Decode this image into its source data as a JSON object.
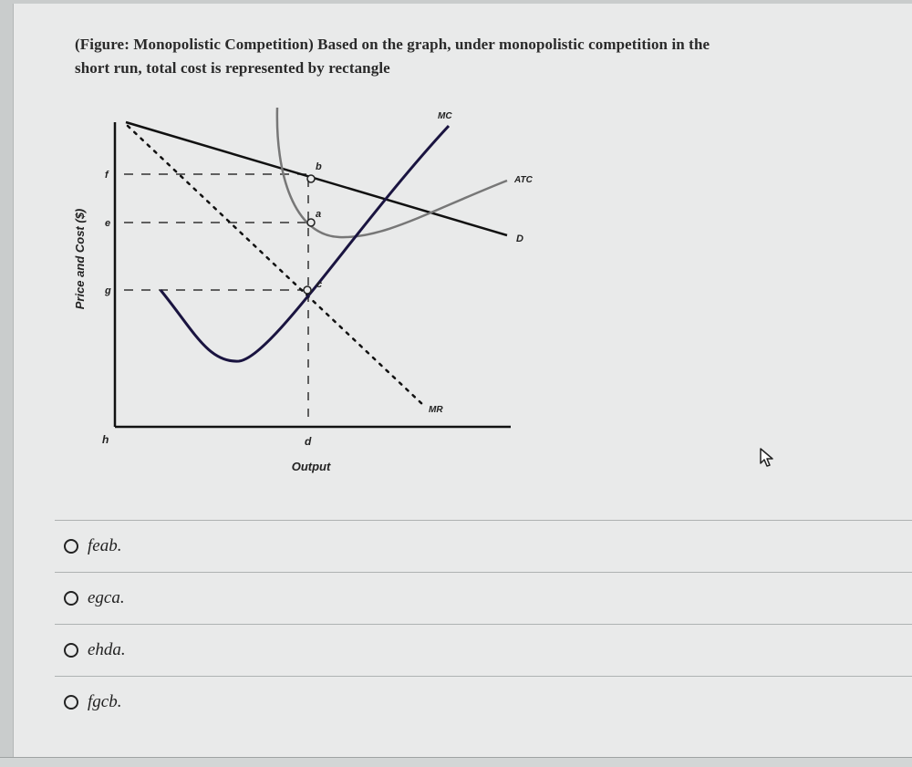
{
  "question": {
    "line1": "(Figure: Monopolistic Competition) Based on the graph, under monopolistic competition in the",
    "line2": "short run, total cost is represented by rectangle"
  },
  "chart_data": {
    "type": "line",
    "ylabel": "Price and Cost ($)",
    "xlabel": "Output",
    "y_tick_labels": [
      "f",
      "e",
      "g"
    ],
    "x_tick_labels": [
      "h",
      "d"
    ],
    "point_labels": [
      "b",
      "a",
      "c"
    ],
    "series": [
      {
        "name": "MC"
      },
      {
        "name": "ATC"
      },
      {
        "name": "D"
      },
      {
        "name": "MR"
      }
    ]
  },
  "options": [
    {
      "label": "feab."
    },
    {
      "label": "egca."
    },
    {
      "label": "ehda."
    },
    {
      "label": "fgcb."
    }
  ]
}
